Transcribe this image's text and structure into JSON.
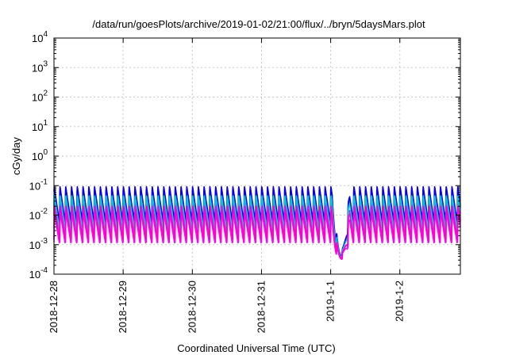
{
  "chart_data": {
    "type": "line",
    "title": "/data/run/goesPlots/archive/2019-01-02/21:00/flux/../bryn/5daysMars.plot",
    "xlabel": "Coordinated Universal Time (UTC)",
    "ylabel": "cGy/day",
    "yscale": "log",
    "ylim": [
      0.0001,
      10000
    ],
    "xlim": [
      "2018-12-28 00:00",
      "2019-01-02 21:00"
    ],
    "grid": true,
    "y_ticks": [
      {
        "base": "10",
        "exp": "-4"
      },
      {
        "base": "10",
        "exp": "-3"
      },
      {
        "base": "10",
        "exp": "-2"
      },
      {
        "base": "10",
        "exp": "-1"
      },
      {
        "base": "10",
        "exp": "0"
      },
      {
        "base": "10",
        "exp": "1"
      },
      {
        "base": "10",
        "exp": "2"
      },
      {
        "base": "10",
        "exp": "3"
      },
      {
        "base": "10",
        "exp": "4"
      }
    ],
    "x_ticks": [
      "2018-12-28",
      "2018-12-29",
      "2018-12-30",
      "2018-12-31",
      "2019-1-1",
      "2019-1-2"
    ],
    "series_colors": [
      "#ff0000",
      "#00b000",
      "#0000ff",
      "#ff00ff",
      "#00cccc",
      "#ff00ff",
      "#ff00cc"
    ],
    "series_ranges": [
      {
        "color": "#ff0000",
        "peak": 0.085,
        "trough": 0.0035
      },
      {
        "color": "#00b000",
        "peak": 0.07,
        "trough": 0.0045
      },
      {
        "color": "#0000ff",
        "peak": 0.1,
        "trough": 0.006
      },
      {
        "color": "#ff00ff",
        "peak": 0.03,
        "trough": 0.0012
      },
      {
        "color": "#00cccc",
        "peak": 0.05,
        "trough": 0.003
      },
      {
        "color": "#ff00ff",
        "peak": 0.015,
        "trough": 0.0011
      },
      {
        "color": "#ff00cc",
        "peak": 0.02,
        "trough": 0.0015
      }
    ],
    "oscillation_period_hours": 2,
    "dip": {
      "start": "2019-01-01 00:30",
      "end": "2019-01-01 07:30",
      "min_value": 0.00025
    }
  }
}
